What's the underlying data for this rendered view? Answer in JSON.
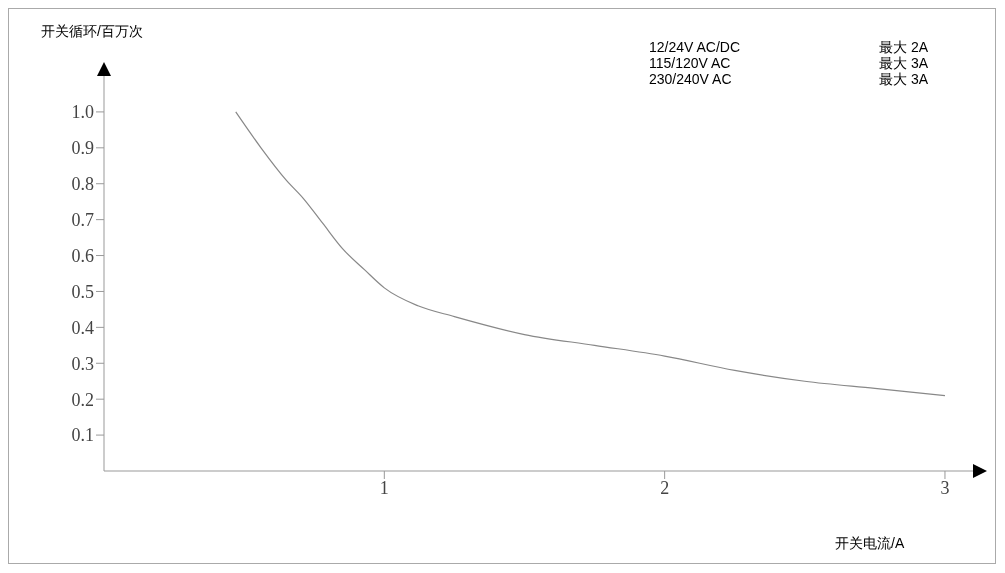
{
  "chart_data": {
    "type": "line",
    "ylabel": "开关循环/百万次",
    "xlabel": "开关电流/A",
    "annotations": [
      "12/24V AC/DC",
      "最大 2A",
      "115/120V AC",
      "最大 3A",
      "230/240V AC",
      "最大 3A"
    ],
    "series": [
      {
        "color": "#888888",
        "x": [
          0.47,
          0.56,
          0.65,
          0.71,
          0.78,
          0.85,
          0.93,
          1.0,
          1.12,
          1.25,
          1.5,
          1.75,
          2.0,
          2.25,
          2.5,
          2.75,
          3.0
        ],
        "values": [
          1.0,
          0.9,
          0.81,
          0.76,
          0.69,
          0.62,
          0.56,
          0.51,
          0.46,
          0.43,
          0.38,
          0.35,
          0.32,
          0.28,
          0.25,
          0.23,
          0.21
        ]
      }
    ],
    "xlim": [
      0,
      3.1
    ],
    "xticks": [
      1,
      2,
      3
    ],
    "ylim": [
      0,
      1.1
    ],
    "yticks": [
      0.1,
      0.2,
      0.3,
      0.4,
      0.5,
      0.6,
      0.7,
      0.8,
      0.9,
      {
        "value": 1,
        "label": "1.0"
      }
    ],
    "grid": false,
    "marker": "none",
    "line_style": "solid"
  }
}
